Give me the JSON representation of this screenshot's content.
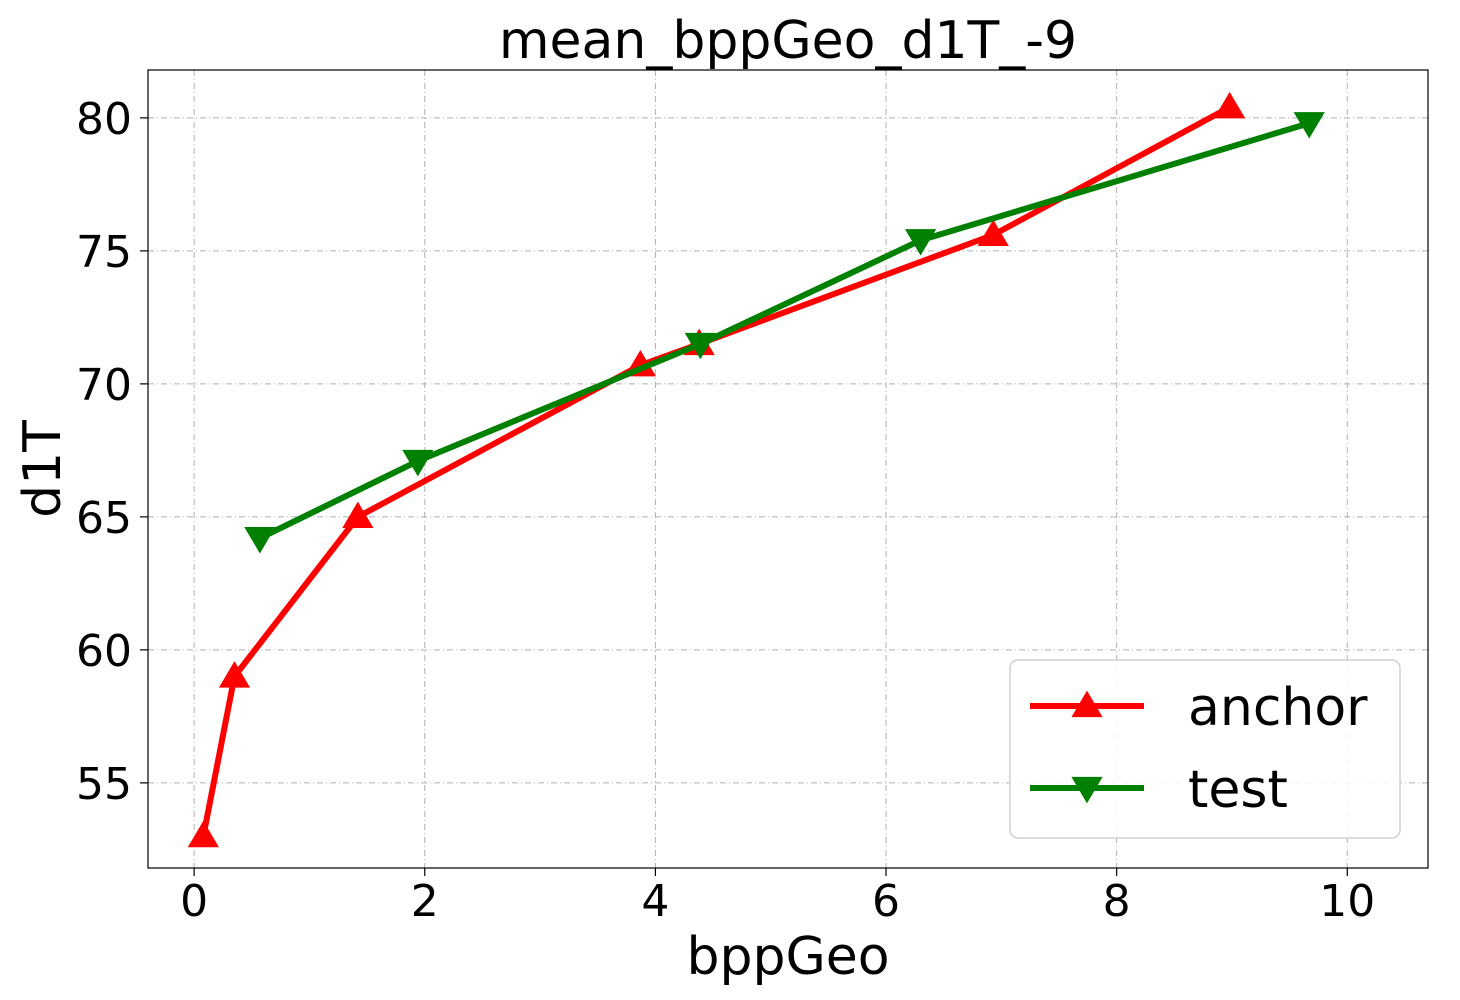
{
  "chart_data": {
    "type": "line",
    "title": "mean_bppGeo_d1T_-9",
    "xlabel": "bppGeo",
    "ylabel": "d1T",
    "xlim": [
      -0.4,
      10.7
    ],
    "ylim": [
      51.8,
      81.8
    ],
    "xticks": [
      0,
      2,
      4,
      6,
      8,
      10
    ],
    "yticks": [
      55,
      60,
      65,
      70,
      75,
      80
    ],
    "grid": true,
    "legend_position": "lower-right",
    "series": [
      {
        "name": "anchor",
        "color": "#ff0000",
        "marker": "triangle-up",
        "x": [
          0.08,
          0.35,
          1.42,
          3.87,
          4.38,
          6.93,
          8.98
        ],
        "y": [
          53.0,
          59.0,
          65.0,
          70.7,
          71.5,
          75.6,
          80.4
        ]
      },
      {
        "name": "test",
        "color": "#008000",
        "marker": "triangle-down",
        "x": [
          0.57,
          1.94,
          4.39,
          6.3,
          9.67
        ],
        "y": [
          64.2,
          67.1,
          71.5,
          75.4,
          79.8
        ]
      }
    ]
  }
}
